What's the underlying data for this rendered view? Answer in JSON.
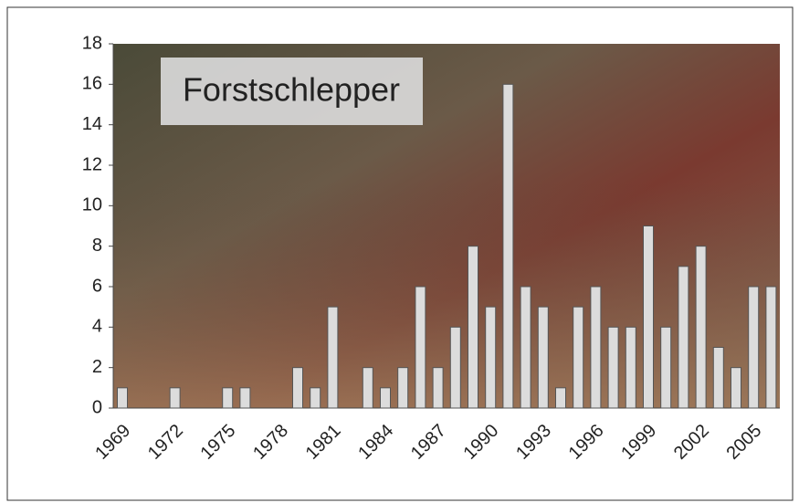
{
  "chart_data": {
    "type": "bar",
    "title": "Forstschlepper",
    "categories": [
      "1969",
      null,
      null,
      "1972",
      null,
      null,
      "1975",
      null,
      null,
      "1978",
      null,
      null,
      "1981",
      null,
      null,
      "1984",
      null,
      null,
      "1987",
      null,
      null,
      "1990",
      null,
      null,
      "1993",
      null,
      null,
      "1996",
      null,
      null,
      "1999",
      null,
      null,
      "2002",
      null,
      null,
      "2005",
      null
    ],
    "values": [
      1,
      0,
      0,
      1,
      0,
      0,
      1,
      1,
      0,
      0,
      2,
      1,
      5,
      0,
      2,
      1,
      2,
      6,
      2,
      4,
      8,
      5,
      16,
      6,
      5,
      1,
      5,
      6,
      4,
      4,
      9,
      4,
      7,
      8,
      3,
      2,
      6,
      6
    ],
    "color": "#dcdcdc",
    "ylim": [
      0,
      18
    ],
    "yticks": [
      0,
      2,
      4,
      6,
      8,
      10,
      12,
      14,
      16,
      18
    ],
    "grid": false
  }
}
